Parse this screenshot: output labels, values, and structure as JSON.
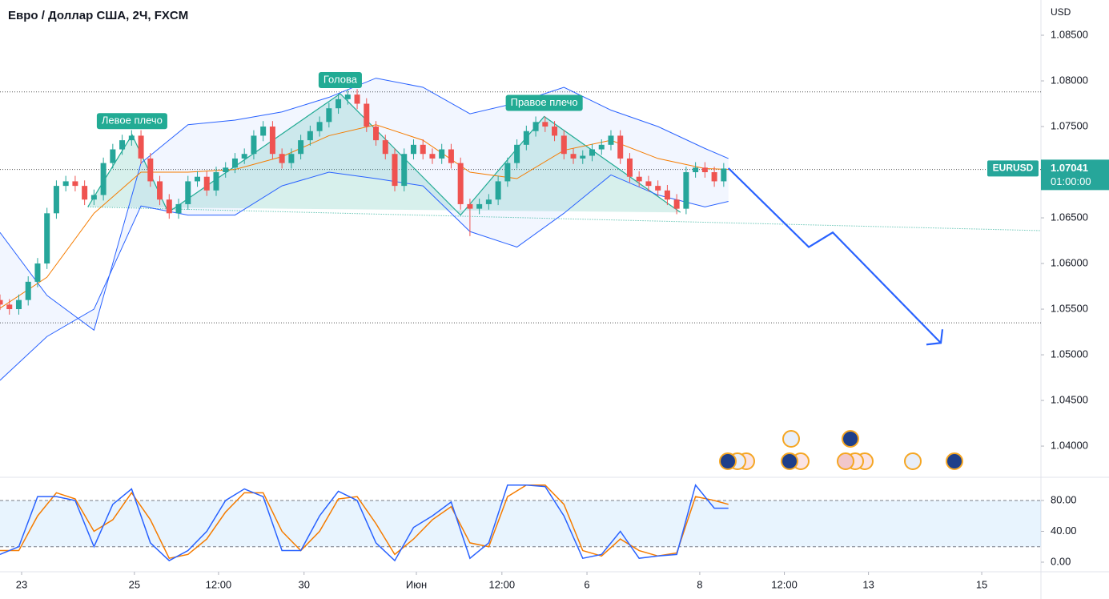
{
  "chart_data": [
    {
      "type": "candlestick",
      "title": "Евро / Доллар США, 2Ч, FXCM",
      "y_label": "USD",
      "symbol": "EURUSD",
      "last_price": 1.07041,
      "countdown": "01:00:00",
      "up_color": "#26a69a",
      "down_color": "#ef5350",
      "xlim": [
        0,
        221.5
      ],
      "ylim": [
        1.03676,
        1.08886
      ],
      "yticks": [
        {
          "value": 1.085,
          "label": "1.08500"
        },
        {
          "value": 1.08,
          "label": "1.08000"
        },
        {
          "value": 1.075,
          "label": "1.07500"
        },
        {
          "value": 1.07,
          "label": "1.07000"
        },
        {
          "value": 1.065,
          "label": "1.06500"
        },
        {
          "value": 1.06,
          "label": "1.06000"
        },
        {
          "value": 1.055,
          "label": "1.05500"
        },
        {
          "value": 1.05,
          "label": "1.05000"
        },
        {
          "value": 1.045,
          "label": "1.04500"
        },
        {
          "value": 1.04,
          "label": "1.04000"
        }
      ],
      "xticks": [
        {
          "value": 4.6,
          "label": "23"
        },
        {
          "value": 28.6,
          "label": "25"
        },
        {
          "value": 46.5,
          "label": "12:00"
        },
        {
          "value": 64.7,
          "label": "30"
        },
        {
          "value": 88.6,
          "label": "Июн"
        },
        {
          "value": 106.8,
          "label": "12:00"
        },
        {
          "value": 124.9,
          "label": "6"
        },
        {
          "value": 148.9,
          "label": "8"
        },
        {
          "value": 166.9,
          "label": "12:00"
        },
        {
          "value": 184.8,
          "label": "13"
        },
        {
          "value": 208.9,
          "label": "15"
        }
      ],
      "x": [
        0,
        2,
        4,
        6,
        8,
        10,
        12,
        14,
        16,
        18,
        20,
        22,
        24,
        26,
        28,
        30,
        32,
        34,
        36,
        38,
        40,
        42,
        44,
        46,
        48,
        50,
        52,
        54,
        56,
        58,
        60,
        62,
        64,
        66,
        68,
        70,
        72,
        74,
        76,
        78,
        80,
        82,
        84,
        86,
        88,
        90,
        92,
        94,
        96,
        98,
        100,
        102,
        104,
        106,
        108,
        110,
        112,
        114,
        116,
        118,
        120,
        122,
        124,
        126,
        128,
        130,
        132,
        134,
        136,
        138,
        140,
        142,
        144,
        146,
        148,
        150,
        152,
        154
      ],
      "open": [
        1.056,
        1.0555,
        1.055,
        1.056,
        1.058,
        1.06,
        1.0655,
        1.0685,
        1.069,
        1.0685,
        1.067,
        1.0675,
        1.071,
        1.0725,
        1.0735,
        1.074,
        1.0715,
        1.069,
        1.067,
        1.0655,
        1.0665,
        1.069,
        1.0695,
        1.068,
        1.07,
        1.0705,
        1.0715,
        1.072,
        1.074,
        1.075,
        1.072,
        1.071,
        1.072,
        1.0735,
        1.0745,
        1.0755,
        1.077,
        1.078,
        1.0785,
        1.0775,
        1.075,
        1.0735,
        1.072,
        1.0685,
        1.072,
        1.073,
        1.072,
        1.0715,
        1.0725,
        1.071,
        1.0665,
        1.066,
        1.0665,
        1.067,
        1.069,
        1.071,
        1.073,
        1.0745,
        1.0755,
        1.075,
        1.074,
        1.072,
        1.0715,
        1.0718,
        1.0725,
        1.073,
        1.074,
        1.0715,
        1.0695,
        1.069,
        1.0685,
        1.068,
        1.067,
        1.066,
        1.07,
        1.0705,
        1.07,
        1.069
      ],
      "high": [
        1.0566,
        1.0561,
        1.0566,
        1.0586,
        1.0606,
        1.0661,
        1.0691,
        1.0696,
        1.0696,
        1.0691,
        1.0681,
        1.0716,
        1.0731,
        1.0741,
        1.0746,
        1.0746,
        1.0721,
        1.0696,
        1.0676,
        1.0671,
        1.0696,
        1.0701,
        1.0701,
        1.0706,
        1.0711,
        1.0721,
        1.0726,
        1.0746,
        1.0756,
        1.0756,
        1.0726,
        1.0726,
        1.0741,
        1.0751,
        1.0761,
        1.0776,
        1.0786,
        1.0791,
        1.0791,
        1.0781,
        1.0756,
        1.0741,
        1.0726,
        1.0726,
        1.0736,
        1.0736,
        1.0726,
        1.0731,
        1.0731,
        1.0716,
        1.0671,
        1.0671,
        1.0676,
        1.0696,
        1.0716,
        1.0736,
        1.0751,
        1.0761,
        1.0761,
        1.0756,
        1.0746,
        1.0726,
        1.0724,
        1.0731,
        1.0736,
        1.0746,
        1.0746,
        1.0721,
        1.0701,
        1.0696,
        1.0691,
        1.0686,
        1.0676,
        1.0706,
        1.0711,
        1.0711,
        1.0706,
        1.071
      ],
      "low": [
        1.0549,
        1.0544,
        1.0544,
        1.0554,
        1.0574,
        1.0594,
        1.0649,
        1.0679,
        1.0679,
        1.0664,
        1.0664,
        1.0669,
        1.0704,
        1.0719,
        1.0729,
        1.0709,
        1.0684,
        1.0664,
        1.0649,
        1.0649,
        1.0659,
        1.0684,
        1.0674,
        1.0674,
        1.0694,
        1.0699,
        1.0709,
        1.0714,
        1.0734,
        1.0714,
        1.0704,
        1.0704,
        1.0714,
        1.0729,
        1.0739,
        1.0749,
        1.0764,
        1.0774,
        1.0769,
        1.0744,
        1.0729,
        1.0714,
        1.0679,
        1.0679,
        1.0714,
        1.0714,
        1.0709,
        1.0709,
        1.0704,
        1.0659,
        1.063,
        1.0654,
        1.0659,
        1.0664,
        1.0684,
        1.0704,
        1.0724,
        1.0739,
        1.0744,
        1.0734,
        1.0714,
        1.0709,
        1.0709,
        1.0712,
        1.0719,
        1.0724,
        1.0709,
        1.0689,
        1.0684,
        1.0679,
        1.0674,
        1.0664,
        1.0654,
        1.0654,
        1.0694,
        1.0694,
        1.0684,
        1.0684
      ],
      "close": [
        1.0555,
        1.055,
        1.056,
        1.058,
        1.06,
        1.0655,
        1.0685,
        1.069,
        1.0685,
        1.067,
        1.0675,
        1.071,
        1.0725,
        1.0735,
        1.074,
        1.0715,
        1.069,
        1.067,
        1.0655,
        1.0665,
        1.069,
        1.0695,
        1.068,
        1.07,
        1.0705,
        1.0715,
        1.072,
        1.074,
        1.075,
        1.072,
        1.071,
        1.072,
        1.0735,
        1.0745,
        1.0755,
        1.077,
        1.078,
        1.0785,
        1.0775,
        1.075,
        1.0735,
        1.072,
        1.0685,
        1.072,
        1.073,
        1.072,
        1.0715,
        1.0725,
        1.071,
        1.0665,
        1.066,
        1.0665,
        1.067,
        1.069,
        1.071,
        1.073,
        1.0745,
        1.0755,
        1.075,
        1.074,
        1.072,
        1.0715,
        1.0718,
        1.0725,
        1.073,
        1.074,
        1.0715,
        1.0695,
        1.069,
        1.0685,
        1.068,
        1.067,
        1.066,
        1.07,
        1.0705,
        1.07,
        1.069,
        1.0704
      ],
      "band_fill": "#2962ff",
      "overlays": [
        {
          "color": "#2962ff",
          "x": [
            0,
            10,
            20,
            30,
            40,
            50,
            60,
            70,
            80,
            90,
            100,
            110,
            120,
            130,
            140,
            150,
            155
          ],
          "values": [
            1.0634,
            1.0565,
            1.0527,
            1.071,
            1.0752,
            1.0757,
            1.0766,
            1.0782,
            1.0803,
            1.0793,
            1.0764,
            1.0776,
            1.0793,
            1.0768,
            1.075,
            1.0726,
            1.0715
          ]
        },
        {
          "color": "#2962ff",
          "x": [
            0,
            10,
            20,
            30,
            40,
            50,
            60,
            70,
            80,
            90,
            100,
            110,
            120,
            130,
            140,
            150,
            155
          ],
          "values": [
            1.0472,
            1.052,
            1.055,
            1.0663,
            1.0653,
            1.0653,
            1.0685,
            1.07,
            1.0693,
            1.0685,
            1.0635,
            1.0618,
            1.0655,
            1.0697,
            1.0675,
            1.0662,
            1.0668
          ]
        },
        {
          "color": "#f57c00",
          "x": [
            0,
            10,
            20,
            30,
            40,
            50,
            60,
            70,
            80,
            90,
            100,
            110,
            120,
            130,
            140,
            150,
            155
          ],
          "values": [
            1.0551,
            1.0585,
            1.0655,
            1.07,
            1.07,
            1.0703,
            1.0717,
            1.074,
            1.0752,
            1.0735,
            1.07,
            1.0693,
            1.0724,
            1.0735,
            1.0715,
            1.0704,
            1.0703
          ]
        }
      ],
      "pattern": {
        "color": "#22ab94",
        "x": [
          18.7,
          28.1,
          35.8,
          72.4,
          98.0,
          115.8,
          144.8
        ],
        "values": [
          1.0662,
          1.0741,
          1.0656,
          1.0786,
          1.0653,
          1.0761,
          1.0656
        ],
        "labels": [
          "Левое плечо",
          "Голова",
          "Правое плечо"
        ]
      },
      "neckline": {
        "x": [
          18.7,
          221.5
        ],
        "values": [
          1.0662,
          1.0636
        ]
      },
      "forecast": {
        "color": "#2962ff",
        "x": [
          155,
          172.1,
          177.2,
          200.2
        ],
        "values": [
          1.07044,
          1.0618,
          1.0634,
          1.0513
        ]
      },
      "hlines": [
        1.0788,
        1.0703,
        1.0535
      ]
    },
    {
      "type": "line",
      "xlim": [
        0,
        221.5
      ],
      "ylim": [
        -10.4,
        110.1
      ],
      "yticks": [
        {
          "value": 80,
          "label": "80.00"
        },
        {
          "value": 40,
          "label": "40.00"
        },
        {
          "value": 0,
          "label": "0.00"
        }
      ],
      "band": [
        20,
        80
      ],
      "x": [
        0,
        4,
        8,
        12,
        16,
        20,
        24,
        28,
        32,
        36,
        40,
        44,
        48,
        52,
        56,
        60,
        64,
        68,
        72,
        76,
        80,
        84,
        88,
        92,
        96,
        100,
        104,
        108,
        112,
        116,
        120,
        124,
        128,
        132,
        136,
        140,
        144,
        148,
        152,
        155
      ],
      "series": [
        {
          "color": "#2962ff",
          "values": [
            10,
            20,
            85,
            85,
            80,
            20,
            75,
            95,
            25,
            2,
            15,
            40,
            80,
            95,
            85,
            15,
            15,
            60,
            92,
            80,
            25,
            2,
            45,
            60,
            78,
            5,
            25,
            100,
            100,
            98,
            60,
            5,
            10,
            40,
            5,
            8,
            10,
            100,
            70,
            70
          ]
        },
        {
          "color": "#f57c00",
          "values": [
            15,
            15,
            60,
            90,
            82,
            40,
            55,
            90,
            55,
            5,
            10,
            30,
            65,
            90,
            90,
            40,
            15,
            40,
            82,
            85,
            50,
            10,
            30,
            55,
            72,
            25,
            20,
            85,
            100,
            100,
            75,
            15,
            8,
            30,
            15,
            8,
            12,
            85,
            80,
            75
          ]
        }
      ]
    }
  ]
}
